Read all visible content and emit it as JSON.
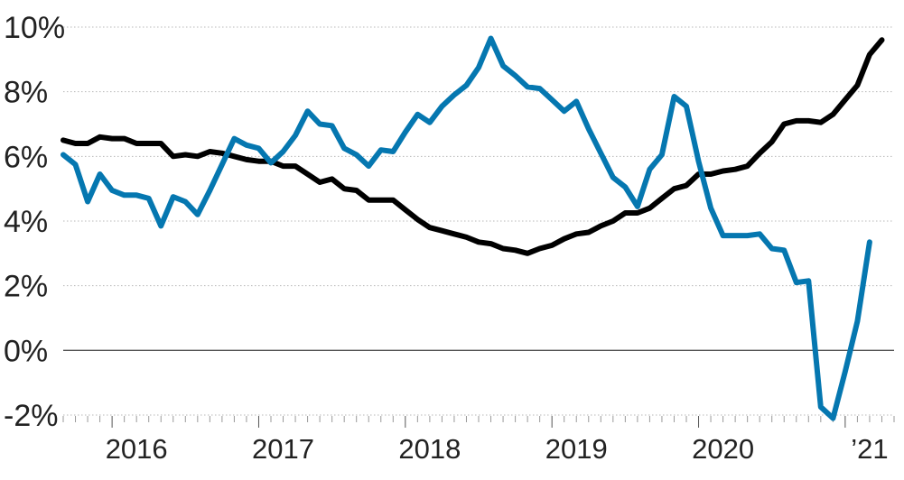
{
  "chart_data": {
    "type": "line",
    "title": "",
    "xlabel": "",
    "ylabel": "",
    "x_start": "2015-09",
    "x_end": "2021-05",
    "x_ticks": [
      {
        "label": "2016",
        "x": "2016-03"
      },
      {
        "label": "2017",
        "x": "2017-03"
      },
      {
        "label": "2018",
        "x": "2018-03"
      },
      {
        "label": "2019",
        "x": "2019-03"
      },
      {
        "label": "2020",
        "x": "2020-03"
      },
      {
        "label": "’21",
        "x": "2021-03"
      }
    ],
    "ylim": [
      -2,
      10
    ],
    "y_ticks": [
      -2,
      0,
      2,
      4,
      6,
      8,
      10
    ],
    "y_tick_labels": [
      "-2%",
      "0%",
      "2%",
      "4%",
      "6%",
      "8%",
      "10%"
    ],
    "grid": true,
    "zero_line": true,
    "series": [
      {
        "color": "#000000",
        "points": [
          [
            "2015-09",
            6.5
          ],
          [
            "2015-10",
            6.4
          ],
          [
            "2015-11",
            6.4
          ],
          [
            "2015-12",
            6.6
          ],
          [
            "2016-01",
            6.55
          ],
          [
            "2016-02",
            6.55
          ],
          [
            "2016-03",
            6.4
          ],
          [
            "2016-04",
            6.4
          ],
          [
            "2016-05",
            6.4
          ],
          [
            "2016-06",
            6.0
          ],
          [
            "2016-07",
            6.05
          ],
          [
            "2016-08",
            6.0
          ],
          [
            "2016-09",
            6.15
          ],
          [
            "2016-10",
            6.1
          ],
          [
            "2016-11",
            6.0
          ],
          [
            "2016-12",
            5.9
          ],
          [
            "2017-01",
            5.85
          ],
          [
            "2017-02",
            5.85
          ],
          [
            "2017-03",
            5.7
          ],
          [
            "2017-04",
            5.7
          ],
          [
            "2017-05",
            5.45
          ],
          [
            "2017-06",
            5.2
          ],
          [
            "2017-07",
            5.3
          ],
          [
            "2017-08",
            5.0
          ],
          [
            "2017-09",
            4.95
          ],
          [
            "2017-10",
            4.65
          ],
          [
            "2017-11",
            4.65
          ],
          [
            "2017-12",
            4.65
          ],
          [
            "2018-01",
            4.35
          ],
          [
            "2018-02",
            4.05
          ],
          [
            "2018-03",
            3.8
          ],
          [
            "2018-04",
            3.7
          ],
          [
            "2018-05",
            3.6
          ],
          [
            "2018-06",
            3.5
          ],
          [
            "2018-07",
            3.35
          ],
          [
            "2018-08",
            3.3
          ],
          [
            "2018-09",
            3.15
          ],
          [
            "2018-10",
            3.1
          ],
          [
            "2018-11",
            3.0
          ],
          [
            "2018-12",
            3.15
          ],
          [
            "2019-01",
            3.25
          ],
          [
            "2019-02",
            3.45
          ],
          [
            "2019-03",
            3.6
          ],
          [
            "2019-04",
            3.65
          ],
          [
            "2019-05",
            3.85
          ],
          [
            "2019-06",
            4.0
          ],
          [
            "2019-07",
            4.25
          ],
          [
            "2019-08",
            4.25
          ],
          [
            "2019-09",
            4.4
          ],
          [
            "2019-10",
            4.7
          ],
          [
            "2019-11",
            5.0
          ],
          [
            "2019-12",
            5.1
          ],
          [
            "2020-01",
            5.45
          ],
          [
            "2020-02",
            5.45
          ],
          [
            "2020-03",
            5.55
          ],
          [
            "2020-04",
            5.6
          ],
          [
            "2020-05",
            5.7
          ],
          [
            "2020-06",
            6.1
          ],
          [
            "2020-07",
            6.45
          ],
          [
            "2020-08",
            7.0
          ],
          [
            "2020-09",
            7.1
          ],
          [
            "2020-10",
            7.1
          ],
          [
            "2020-11",
            7.05
          ],
          [
            "2020-12",
            7.3
          ],
          [
            "2021-01",
            7.75
          ],
          [
            "2021-02",
            8.2
          ],
          [
            "2021-03",
            9.15
          ],
          [
            "2021-04",
            9.6
          ]
        ]
      },
      {
        "color": "#0577b0",
        "points": [
          [
            "2015-09",
            6.05
          ],
          [
            "2015-10",
            5.75
          ],
          [
            "2015-11",
            4.6
          ],
          [
            "2015-12",
            5.45
          ],
          [
            "2016-01",
            4.95
          ],
          [
            "2016-02",
            4.8
          ],
          [
            "2016-03",
            4.8
          ],
          [
            "2016-04",
            4.7
          ],
          [
            "2016-05",
            3.85
          ],
          [
            "2016-06",
            4.75
          ],
          [
            "2016-07",
            4.6
          ],
          [
            "2016-08",
            4.2
          ],
          [
            "2016-09",
            4.95
          ],
          [
            "2016-10",
            5.75
          ],
          [
            "2016-11",
            6.55
          ],
          [
            "2016-12",
            6.35
          ],
          [
            "2017-01",
            6.25
          ],
          [
            "2017-02",
            5.8
          ],
          [
            "2017-03",
            6.15
          ],
          [
            "2017-04",
            6.65
          ],
          [
            "2017-05",
            7.4
          ],
          [
            "2017-06",
            7.0
          ],
          [
            "2017-07",
            6.95
          ],
          [
            "2017-08",
            6.25
          ],
          [
            "2017-09",
            6.05
          ],
          [
            "2017-10",
            5.7
          ],
          [
            "2017-11",
            6.2
          ],
          [
            "2017-12",
            6.15
          ],
          [
            "2018-01",
            6.75
          ],
          [
            "2018-02",
            7.3
          ],
          [
            "2018-03",
            7.05
          ],
          [
            "2018-04",
            7.55
          ],
          [
            "2018-05",
            7.9
          ],
          [
            "2018-06",
            8.2
          ],
          [
            "2018-07",
            8.75
          ],
          [
            "2018-08",
            9.65
          ],
          [
            "2018-09",
            8.8
          ],
          [
            "2018-10",
            8.5
          ],
          [
            "2018-11",
            8.15
          ],
          [
            "2018-12",
            8.1
          ],
          [
            "2019-01",
            7.75
          ],
          [
            "2019-02",
            7.4
          ],
          [
            "2019-03",
            7.7
          ],
          [
            "2019-04",
            6.85
          ],
          [
            "2019-05",
            6.1
          ],
          [
            "2019-06",
            5.35
          ],
          [
            "2019-07",
            5.05
          ],
          [
            "2019-08",
            4.45
          ],
          [
            "2019-09",
            5.6
          ],
          [
            "2019-10",
            6.05
          ],
          [
            "2019-11",
            7.85
          ],
          [
            "2019-12",
            7.55
          ],
          [
            "2020-01",
            5.85
          ],
          [
            "2020-02",
            4.4
          ],
          [
            "2020-03",
            3.55
          ],
          [
            "2020-04",
            3.55
          ],
          [
            "2020-05",
            3.55
          ],
          [
            "2020-06",
            3.6
          ],
          [
            "2020-07",
            3.15
          ],
          [
            "2020-08",
            3.1
          ],
          [
            "2020-09",
            2.1
          ],
          [
            "2020-10",
            2.15
          ],
          [
            "2020-11",
            -1.75
          ],
          [
            "2020-12",
            -2.1
          ],
          [
            "2021-01",
            -0.65
          ],
          [
            "2021-02",
            0.9
          ],
          [
            "2021-03",
            3.35
          ]
        ]
      }
    ]
  }
}
